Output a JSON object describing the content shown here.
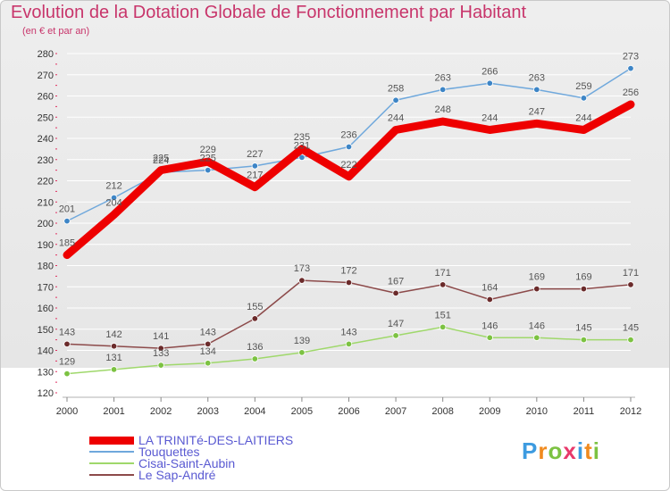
{
  "title": "Evolution de la Dotation Globale de Fonctionnement par Habitant",
  "subtitle": "(en € et par an)",
  "logo": {
    "text": "Proxiti",
    "letter_colors": [
      "#3d9be0",
      "#f08a1e",
      "#7cc242",
      "#e8396b",
      "#3d9be0",
      "#f08a1e",
      "#7cc242"
    ]
  },
  "chart_data": {
    "type": "line",
    "title": "Evolution de la Dotation Globale de Fonctionnement par Habitant",
    "subtitle": "(en € et par an)",
    "x": [
      "2000",
      "2001",
      "2002",
      "2003",
      "2004",
      "2005",
      "2006",
      "2007",
      "2008",
      "2009",
      "2010",
      "2011",
      "2012"
    ],
    "ylim": [
      120,
      280
    ],
    "yticks": [
      120,
      130,
      140,
      150,
      160,
      170,
      180,
      190,
      200,
      210,
      220,
      230,
      240,
      250,
      260,
      270,
      280
    ],
    "grid": "horizontal",
    "legend_position": "bottom-left",
    "series": [
      {
        "name": "Touquettes",
        "color": "#6fa8dc",
        "marker_color": "#3d85c6",
        "emphasis": false,
        "values": [
          201,
          212,
          224,
          225,
          227,
          231,
          236,
          258,
          263,
          266,
          263,
          259,
          273
        ]
      },
      {
        "name": "Cisai-Saint-Aubin",
        "color": "#9fd86b",
        "marker_color": "#7cc242",
        "emphasis": false,
        "values": [
          129,
          131,
          133,
          134,
          136,
          139,
          143,
          147,
          151,
          146,
          146,
          145,
          145
        ]
      },
      {
        "name": "Le Sap-André",
        "color": "#8c4a4a",
        "marker_color": "#6b2b2b",
        "emphasis": false,
        "values": [
          143,
          142,
          141,
          143,
          155,
          173,
          172,
          167,
          171,
          164,
          169,
          169,
          171
        ]
      },
      {
        "name": "LA TRINITé-DES-LAITIERS",
        "color": "#ee0000",
        "marker_color": "#ee0000",
        "emphasis": true,
        "values": [
          185,
          204,
          225,
          229,
          217,
          235,
          222,
          244,
          248,
          244,
          247,
          244,
          256
        ]
      }
    ],
    "legend_order": [
      "LA TRINITé-DES-LAITIERS",
      "Touquettes",
      "Cisai-Saint-Aubin",
      "Le Sap-André"
    ]
  }
}
